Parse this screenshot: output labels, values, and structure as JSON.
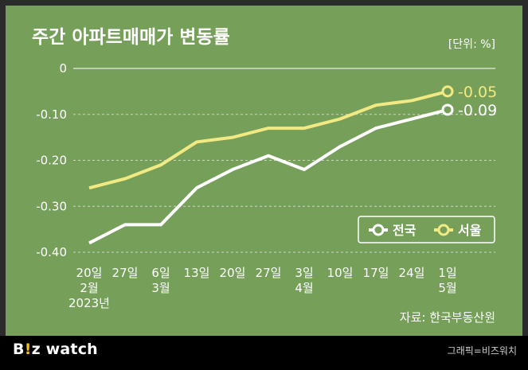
{
  "chart_data": {
    "type": "line",
    "title": "주간 아파트매매가 변동률",
    "unit_label": "[단위: %]",
    "source": "자료: 한국부동산원",
    "ylim": [
      -0.4,
      0
    ],
    "yticks": [
      0,
      -0.1,
      -0.2,
      -0.3,
      -0.4
    ],
    "ytick_labels": [
      "0",
      "-0.10",
      "-0.20",
      "-0.30",
      "-0.40"
    ],
    "x_labels": [
      [
        "20일",
        "2월",
        "2023년"
      ],
      [
        "27일"
      ],
      [
        "6일",
        "3월"
      ],
      [
        "13일"
      ],
      [
        "20일"
      ],
      [
        "27일"
      ],
      [
        "3일",
        "4월"
      ],
      [
        "10일"
      ],
      [
        "17일"
      ],
      [
        "24일"
      ],
      [
        "1일",
        "5월"
      ]
    ],
    "series": [
      {
        "name": "전국",
        "color": "#ffffff",
        "values": [
          -0.38,
          -0.34,
          -0.34,
          -0.26,
          -0.22,
          -0.19,
          -0.22,
          -0.17,
          -0.13,
          -0.11,
          -0.09
        ],
        "end_label": "-0.09"
      },
      {
        "name": "서울",
        "color": "#f1ea83",
        "values": [
          -0.26,
          -0.24,
          -0.21,
          -0.16,
          -0.15,
          -0.13,
          -0.13,
          -0.11,
          -0.08,
          -0.07,
          -0.05
        ],
        "end_label": "-0.05"
      }
    ],
    "legend_position": "bottom-right"
  },
  "brand": {
    "b": "B",
    "excl": "!",
    "z": "z",
    "watch": " watch"
  },
  "credit": "그래픽=비즈워치"
}
